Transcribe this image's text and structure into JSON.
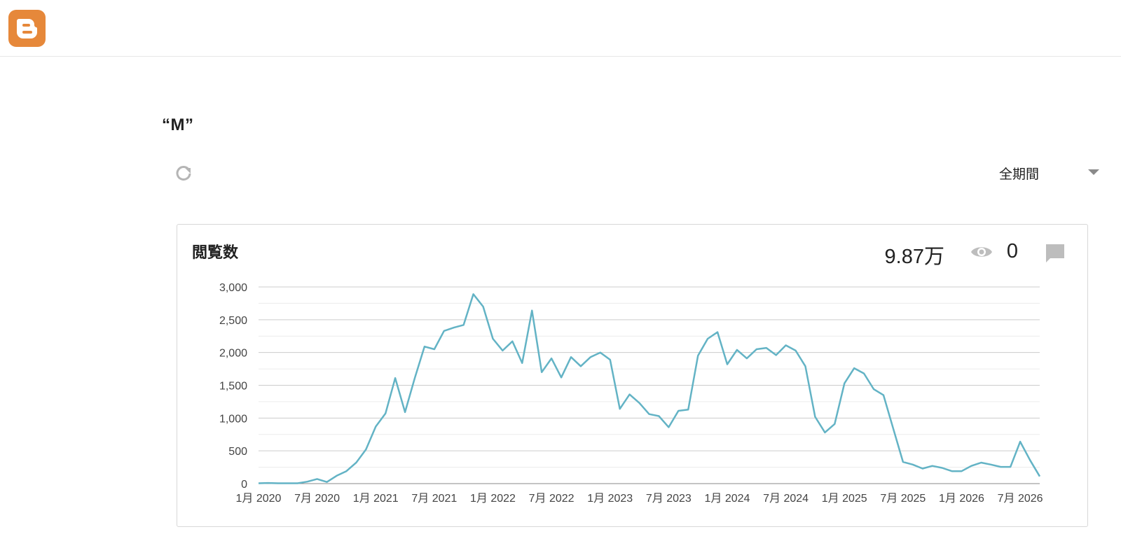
{
  "header": {
    "logo_icon": "blogger-logo-icon",
    "logo_color": "#e6883a"
  },
  "post": {
    "title": "“M”"
  },
  "toolbar": {
    "refresh_icon": "refresh-icon",
    "period": "全期間",
    "period_caret_icon": "caret-down-icon"
  },
  "card": {
    "title": "閲覧数",
    "views": "9.87万",
    "views_icon": "eye-icon",
    "comments": "0",
    "comments_icon": "comment-icon"
  },
  "chart_data": {
    "type": "line",
    "title": "",
    "xlabel": "",
    "ylabel": "",
    "ylim": [
      0,
      3000
    ],
    "y_ticks": [
      "0",
      "500",
      "1,000",
      "1,500",
      "2,000",
      "2,500",
      "3,000"
    ],
    "y_tick_values": [
      0,
      500,
      1000,
      1500,
      2000,
      2500,
      3000
    ],
    "x_ticks": [
      "1月 2020",
      "7月 2020",
      "1月 2021",
      "7月 2021",
      "1月 2022",
      "7月 2022",
      "1月 2023",
      "7月 2023",
      "1月 2024",
      "7月 2024",
      "1月 2025",
      "7月 2025",
      "1月 2026",
      "7月 2026"
    ],
    "grid": true,
    "line_color": "#63b3c5",
    "series": [
      {
        "name": "",
        "values": [
          5,
          10,
          5,
          5,
          5,
          30,
          70,
          25,
          120,
          190,
          320,
          520,
          870,
          1070,
          1610,
          1090,
          1610,
          2090,
          2050,
          2330,
          2380,
          2420,
          2890,
          2700,
          2210,
          2030,
          2170,
          1840,
          2640,
          1700,
          1910,
          1620,
          1930,
          1790,
          1930,
          2000,
          1890,
          1140,
          1360,
          1230,
          1060,
          1030,
          860,
          1110,
          1130,
          1950,
          2210,
          2310,
          1820,
          2040,
          1910,
          2050,
          2070,
          1960,
          2110,
          2030,
          1790,
          1020,
          780,
          910,
          1530,
          1760,
          1680,
          1440,
          1350,
          840,
          330,
          290,
          230,
          270,
          240,
          190,
          190,
          270,
          320,
          290,
          255,
          255,
          640,
          360,
          110
        ]
      }
    ]
  }
}
